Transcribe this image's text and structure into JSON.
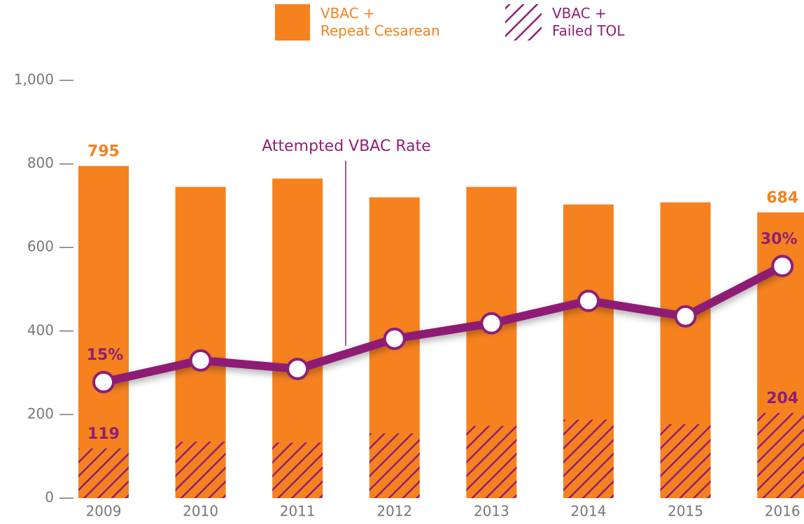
{
  "chart_data": {
    "type": "bar",
    "categories": [
      "2009",
      "2010",
      "2011",
      "2012",
      "2013",
      "2014",
      "2015",
      "2016"
    ],
    "series": [
      {
        "name": "VBAC +\nRepeat Cesarean",
        "color": "#f5821f",
        "values": [
          795,
          745,
          765,
          720,
          745,
          703,
          708,
          684
        ],
        "value_labels": [
          "795",
          null,
          null,
          null,
          null,
          null,
          null,
          "684"
        ]
      },
      {
        "name": "VBAC +\nFailed TOL",
        "color": "#8e1f75",
        "hatch": true,
        "values": [
          119,
          135,
          133,
          155,
          173,
          188,
          177,
          204
        ],
        "value_labels": [
          "119",
          null,
          null,
          null,
          null,
          null,
          null,
          "204"
        ]
      },
      {
        "type": "line",
        "axis": "y2",
        "color": "#8e1f75",
        "values": [
          15,
          17.8,
          16.7,
          20.6,
          22.6,
          25.5,
          23.5,
          30
        ],
        "value_labels": [
          "15%",
          null,
          null,
          null,
          null,
          null,
          null,
          "30%"
        ]
      }
    ],
    "annotation": "Attempted VBAC Rate",
    "ylim": [
      0,
      1000
    ],
    "yticks": [
      0,
      200,
      400,
      600,
      800,
      {
        "value": 1000,
        "label": "1,000"
      }
    ],
    "y2lim": [
      0,
      54
    ]
  }
}
